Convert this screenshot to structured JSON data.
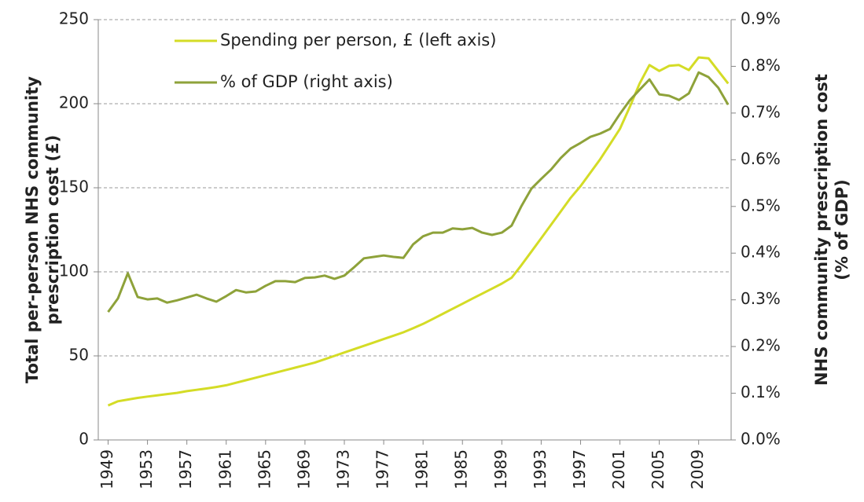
{
  "chart_data": {
    "type": "line",
    "x": [
      1949,
      1950,
      1951,
      1952,
      1953,
      1954,
      1955,
      1956,
      1957,
      1958,
      1959,
      1960,
      1961,
      1962,
      1963,
      1964,
      1965,
      1966,
      1967,
      1968,
      1969,
      1970,
      1971,
      1972,
      1973,
      1974,
      1975,
      1976,
      1977,
      1978,
      1979,
      1980,
      1981,
      1982,
      1983,
      1984,
      1985,
      1986,
      1987,
      1988,
      1989,
      1990,
      1991,
      1992,
      1993,
      1994,
      1995,
      1996,
      1997,
      1998,
      1999,
      2000,
      2001,
      2002,
      2003,
      2004,
      2005,
      2006,
      2007,
      2008,
      2009,
      2010,
      2011,
      2012
    ],
    "xlim": [
      1948,
      2012.3
    ],
    "xticks": [
      1949,
      1953,
      1957,
      1961,
      1965,
      1969,
      1973,
      1977,
      1981,
      1985,
      1989,
      1993,
      1997,
      2001,
      2005,
      2009
    ],
    "ylabel": [
      "Total per-person NHS community",
      "prescription cost (£)"
    ],
    "y2label": [
      "NHS community prescription cost",
      "(% of GDP)"
    ],
    "ylim": [
      0,
      250
    ],
    "yticks": [
      0,
      50,
      100,
      150,
      200,
      250
    ],
    "y2lim": [
      0,
      0.9
    ],
    "y2ticks": [
      {
        "value": 0,
        "label": "0.0%"
      },
      {
        "value": 0.1,
        "label": "0.1%"
      },
      {
        "value": 0.2,
        "label": "0.2%"
      },
      {
        "value": 0.3,
        "label": "0.3%"
      },
      {
        "value": 0.4,
        "label": "0.4%"
      },
      {
        "value": 0.5,
        "label": "0.5%"
      },
      {
        "value": 0.6,
        "label": "0.6%"
      },
      {
        "value": 0.7,
        "label": "0.7%"
      },
      {
        "value": 0.8,
        "label": "0.8%"
      },
      {
        "value": 0.9,
        "label": "0.9%"
      }
    ],
    "grid": true,
    "legend": "top-left",
    "series": [
      {
        "name": "Spending per person, £ (left axis)",
        "color": "#d4dc26",
        "values": [
          20.5,
          23,
          24,
          25,
          25.8,
          26.5,
          27.3,
          28,
          29,
          29.8,
          30.6,
          31.5,
          32.5,
          34,
          35.5,
          37,
          38.5,
          40,
          41.5,
          43,
          44.5,
          46,
          48,
          50,
          52,
          54,
          56,
          58,
          60,
          62,
          64,
          66.5,
          69,
          72,
          75,
          78,
          81,
          84,
          87,
          90,
          93,
          96.5,
          104,
          112,
          120,
          128,
          136,
          144,
          151,
          159,
          167,
          176,
          185,
          198,
          212,
          223,
          219.5,
          222.5,
          223,
          220,
          227.5,
          227,
          219.5,
          212
        ]
      },
      {
        "name": "% of GDP (right axis)",
        "color": "#8ea23a",
        "axis": "y2",
        "values": [
          0.274,
          0.303,
          0.357,
          0.306,
          0.301,
          0.303,
          0.294,
          0.299,
          0.305,
          0.311,
          0.303,
          0.296,
          0.308,
          0.321,
          0.316,
          0.318,
          0.33,
          0.34,
          0.34,
          0.338,
          0.347,
          0.348,
          0.352,
          0.345,
          0.352,
          0.37,
          0.389,
          0.392,
          0.395,
          0.392,
          0.39,
          0.419,
          0.436,
          0.444,
          0.444,
          0.453,
          0.451,
          0.454,
          0.444,
          0.439,
          0.444,
          0.459,
          0.501,
          0.538,
          0.559,
          0.579,
          0.604,
          0.624,
          0.636,
          0.649,
          0.656,
          0.666,
          0.698,
          0.727,
          0.75,
          0.772,
          0.74,
          0.737,
          0.728,
          0.742,
          0.787,
          0.777,
          0.754,
          0.718
        ]
      }
    ]
  }
}
